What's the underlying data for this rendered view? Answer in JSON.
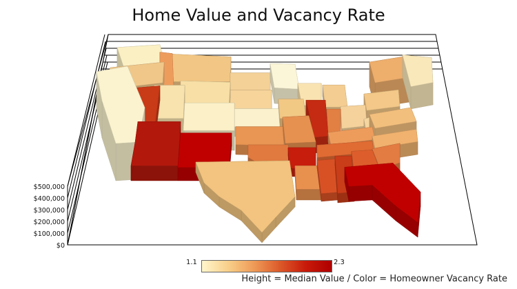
{
  "chart_data": {
    "type": "map-3d-extrusion",
    "title": "Home Value and Vacancy Rate",
    "z_axis": {
      "ticks": [
        "$0",
        "$100,000",
        "$200,000",
        "$300,000",
        "$400,000",
        "$500,000"
      ],
      "range": [
        0,
        500000
      ]
    },
    "color_legend": {
      "min_label": "1.1",
      "max_label": "2.3",
      "min": 1.1,
      "max": 2.3,
      "low_color": "#fff6cc",
      "high_color": "#b00000"
    },
    "footnote": "Height = Median Value / Color = Homeowner Vacancy Rate",
    "grid": true,
    "states": [
      {
        "state": "Washington",
        "color": "#fbf0c4",
        "height": 260000
      },
      {
        "state": "Oregon",
        "color": "#f0c789",
        "height": 250000
      },
      {
        "state": "California",
        "color": "#fbf3cf",
        "height": 450000
      },
      {
        "state": "Nevada",
        "color": "#c93a17",
        "height": 180000
      },
      {
        "state": "Idaho",
        "color": "#ee9c5c",
        "height": 170000
      },
      {
        "state": "Montana",
        "color": "#f2c684",
        "height": 180000
      },
      {
        "state": "Wyoming",
        "color": "#f7dfa6",
        "height": 190000
      },
      {
        "state": "Utah",
        "color": "#f8e3ae",
        "height": 220000
      },
      {
        "state": "Arizona",
        "color": "#b3180c",
        "height": 180000
      },
      {
        "state": "Colorado",
        "color": "#fbf0c8",
        "height": 240000
      },
      {
        "state": "New Mexico",
        "color": "#c00000",
        "height": 160000
      },
      {
        "state": "North Dakota",
        "color": "#f4d196",
        "height": 120000
      },
      {
        "state": "South Dakota",
        "color": "#f6d49a",
        "height": 120000
      },
      {
        "state": "Nebraska",
        "color": "#fbf1cc",
        "height": 120000
      },
      {
        "state": "Kansas",
        "color": "#e99553",
        "height": 120000
      },
      {
        "state": "Oklahoma",
        "color": "#e07a3f",
        "height": 100000
      },
      {
        "state": "Texas",
        "color": "#f2c47f",
        "height": 125000
      },
      {
        "state": "Minnesota",
        "color": "#fcf6d8",
        "height": 190000
      },
      {
        "state": "Iowa",
        "color": "#f2c885",
        "height": 120000
      },
      {
        "state": "Missouri",
        "color": "#e69150",
        "height": 135000
      },
      {
        "state": "Arkansas",
        "color": "#c71d0d",
        "height": 100000
      },
      {
        "state": "Louisiana",
        "color": "#e8914f",
        "height": 130000
      },
      {
        "state": "Wisconsin",
        "color": "#f9e3b1",
        "height": 160000
      },
      {
        "state": "Illinois",
        "color": "#c52b12",
        "height": 190000
      },
      {
        "state": "Michigan",
        "color": "#f3cd91",
        "height": 140000
      },
      {
        "state": "Indiana",
        "color": "#e27f43",
        "height": 115000
      },
      {
        "state": "Ohio",
        "color": "#f5d29b",
        "height": 130000
      },
      {
        "state": "Kentucky",
        "color": "#ee9c5c",
        "height": 115000
      },
      {
        "state": "Tennessee",
        "color": "#e06b33",
        "height": 130000
      },
      {
        "state": "Mississippi",
        "color": "#d85125",
        "height": 95000
      },
      {
        "state": "Alabama",
        "color": "#c93d18",
        "height": 115000
      },
      {
        "state": "Georgia",
        "color": "#dd5e2c",
        "height": 155000
      },
      {
        "state": "Florida",
        "color": "#c00000",
        "height": 180000
      },
      {
        "state": "South Carolina",
        "color": "#e37c42",
        "height": 135000
      },
      {
        "state": "North Carolina",
        "color": "#f0b26e",
        "height": 155000
      },
      {
        "state": "Virginia",
        "color": "#f2bf7d",
        "height": 250000
      },
      {
        "state": "West Virginia",
        "color": "#f6d69f",
        "height": 95000
      },
      {
        "state": "Pennsylvania",
        "color": "#f3c888",
        "height": 165000
      },
      {
        "state": "New York",
        "color": "#eeae6c",
        "height": 300000
      },
      {
        "state": "New England",
        "color": "#f9e8ba",
        "height": 270000
      }
    ]
  }
}
